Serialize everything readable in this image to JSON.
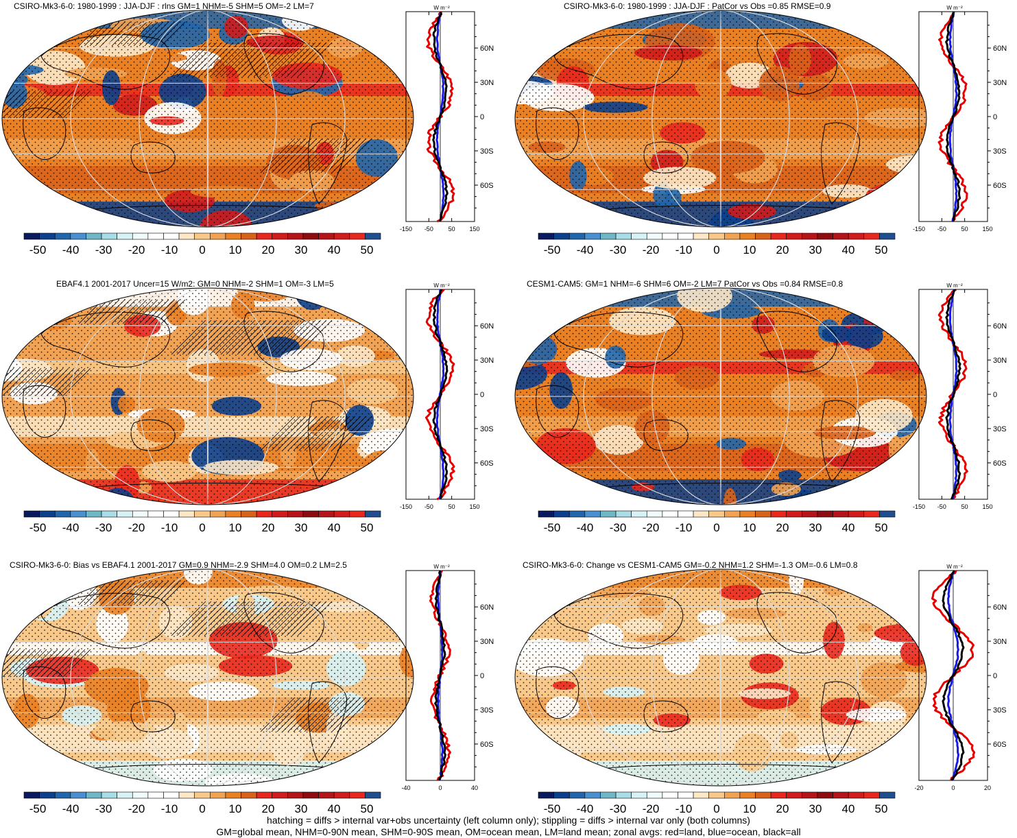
{
  "panels": [
    {
      "title": "CSIRO-Mk3-6-0: 1980-1999 : JJA-DJF : rlns GM=1 NHM=-5 SHM=5 OM=-2 LM=7",
      "zonal_xticks": [
        "-150",
        "-50",
        "50",
        "150"
      ],
      "hatch": true,
      "tone": "strong"
    },
    {
      "title": "CSIRO-Mk3-6-0: 1980-1999 : JJA-DJF : PatCor vs Obs =0.85 RMSE=0.9",
      "zonal_xticks": [
        "-150",
        "-50",
        "50",
        "150"
      ],
      "hatch": false,
      "tone": "strong"
    },
    {
      "title": "EBAF4.1 2001-2017 Uncer=15 W/m2: GM=0 NHM=-2 SHM=1 OM=-3 LM=5",
      "zonal_xticks": [
        "-150",
        "-50",
        "50",
        "150"
      ],
      "hatch": true,
      "tone": "orange"
    },
    {
      "title": "CESM1-CAM5: GM=1 NHM=-6 SHM=6 OM=-2 LM=7 PatCor vs Obs =0.84 RMSE=0.8",
      "zonal_xticks": [
        "-150",
        "-50",
        "50",
        "150"
      ],
      "hatch": false,
      "tone": "strong"
    },
    {
      "title": "CSIRO-Mk3-6-0: Bias vs EBAF4.1 2001-2017 GM=0.9 NHM=-2.9 SHM=4.0 OM=0.2 LM=2.5",
      "zonal_xticks": [
        "-40",
        "0",
        "40"
      ],
      "hatch": true,
      "tone": "mild"
    },
    {
      "title": "CSIRO-Mk3-6-0: Change vs CESM1-CAM5 GM=-0.2 NHM=1.2 SHM=-1.3 OM=-0.6 LM=0.8",
      "zonal_xticks": [
        "-20",
        "0",
        "20"
      ],
      "hatch": false,
      "tone": "mild"
    }
  ],
  "zonal_unit": "W m⁻²",
  "lat_labels": [
    "60N",
    "30N",
    "0",
    "30S",
    "60S"
  ],
  "colorbar": {
    "labels": [
      "-50",
      "-40",
      "-30",
      "-20",
      "-10",
      "0",
      "10",
      "20",
      "30",
      "40",
      "50"
    ],
    "colors": [
      "#0a1a5e",
      "#0c3f8c",
      "#2166ac",
      "#4a8fd0",
      "#6fb7c7",
      "#a8dde8",
      "#d6f2f5",
      "#f2fbfb",
      "#ffffff",
      "#ffffff",
      "#fde7c7",
      "#f8c98a",
      "#f1a253",
      "#e98024",
      "#d9621a",
      "#e8281e",
      "#d01c1c",
      "#b5141a",
      "#8e0c10",
      "#b5141a",
      "#d01c1c",
      "#e8281e",
      "#1f4f8f"
    ]
  },
  "colors": {
    "land": "#e60000",
    "ocean": "#1a1ae6",
    "all": "#000000"
  },
  "footer": {
    "line1": "hatching = diffs > internal var+obs uncertainty (left column only); stippling = diffs > internal var only (both columns)",
    "line2": "GM=global mean, NHM=0-90N mean, SHM=0-90S mean, OM=ocean mean, LM=land mean; zonal avgs: red=land, blue=ocean, black=all"
  }
}
